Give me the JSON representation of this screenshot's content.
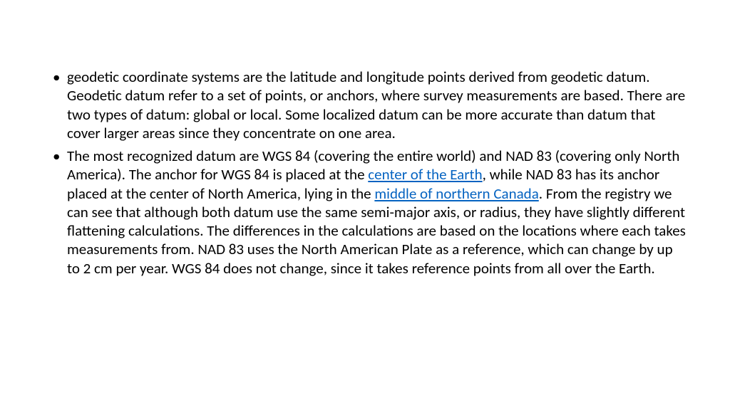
{
  "text_color": "#000000",
  "link_color": "#0563c1",
  "background_color": "#ffffff",
  "font_family": "Calibri",
  "font_size_pt": 16,
  "bullets": [
    {
      "segments": [
        {
          "text": "geodetic coordinate systems are the latitude and longitude points derived from geodetic datum. Geodetic datum refer to a set of points, or anchors, where survey measurements are based. There are two types of datum: global or local. Some localized datum can be more accurate than datum that cover larger areas since they concentrate on one area.",
          "link": false
        }
      ]
    },
    {
      "segments": [
        {
          "text": "The most recognized datum are WGS 84 (covering the entire world) and NAD 83 (covering only North America). The anchor for WGS 84 is placed at the ",
          "link": false
        },
        {
          "text": "center of the Earth",
          "link": true
        },
        {
          "text": ", while NAD 83 has its anchor placed at the center of North America, lying in the ",
          "link": false
        },
        {
          "text": "middle of northern Canada",
          "link": true
        },
        {
          "text": ". From the registry we can see that although both datum use the same semi-major axis, or radius, they have slightly different flattening calculations. The differences in the calculations are based on the locations where each takes measurements from. NAD 83 uses the North American Plate as a reference, which can change by up to 2 cm per year. WGS 84 does not change, since it takes reference points from all over the Earth.",
          "link": false
        }
      ]
    }
  ]
}
